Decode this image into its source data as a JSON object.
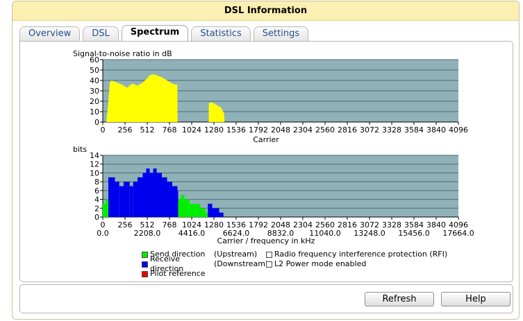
{
  "window": {
    "title": "DSL Information"
  },
  "tabs": [
    {
      "label": "Overview",
      "active": false
    },
    {
      "label": "DSL",
      "active": false
    },
    {
      "label": "Spectrum",
      "active": true
    },
    {
      "label": "Statistics",
      "active": false
    },
    {
      "label": "Settings",
      "active": false
    }
  ],
  "colors": {
    "plot_background": "#8fb1b7",
    "snr_fill": "#ffff00",
    "send_direction": "#00ee00",
    "receive_direction": "#0000ee",
    "pilot": "#ee0000"
  },
  "legend": {
    "send": "Send direction",
    "send_dir": "(Upstream)",
    "receive": "Receive direction",
    "receive_dir": "(Downstream)",
    "pilot": "Pilot reference",
    "rfi": "Radio frequency interference protection (RFI)",
    "l2": "L2 Power mode enabled"
  },
  "buttons": {
    "refresh": "Refresh",
    "help": "Help"
  },
  "chart_data": [
    {
      "type": "area",
      "ylabel": "Signal-to-noise ratio in dB",
      "xlabel": "Carrier",
      "xlim": [
        0,
        4096
      ],
      "ylim": [
        0,
        60
      ],
      "xticks": [
        0,
        256,
        512,
        768,
        1024,
        1280,
        1536,
        1792,
        2048,
        2304,
        2560,
        2816,
        3072,
        3328,
        3584,
        3840,
        4096
      ],
      "yticks": [
        0,
        10,
        20,
        30,
        40,
        50,
        60
      ],
      "grid": true,
      "series": [
        {
          "x": [
            0,
            40,
            60,
            80,
            100,
            160,
            220,
            280,
            340,
            400,
            460,
            500,
            540,
            580,
            620,
            680,
            740,
            800,
            840,
            860,
            861,
            1220,
            1221,
            1240,
            1280,
            1320,
            1360,
            1400,
            1401
          ],
          "y": [
            0,
            0,
            16,
            38,
            40,
            38,
            36,
            33,
            37,
            35,
            38,
            41,
            45,
            46,
            45,
            43,
            40,
            37,
            36,
            36,
            0,
            0,
            18,
            19,
            18,
            16,
            14,
            8,
            0
          ]
        }
      ]
    },
    {
      "type": "bar",
      "ylabel": "bits",
      "xlabel": "Carrier / frequency in kHz",
      "xlim": [
        0,
        4096
      ],
      "ylim": [
        0,
        14
      ],
      "xticks": [
        0,
        256,
        512,
        768,
        1024,
        1280,
        1536,
        1792,
        2048,
        2304,
        2560,
        2816,
        3072,
        3328,
        3584,
        3840,
        4096
      ],
      "xticks_khz": [
        "0.0",
        "2208.0",
        "4416.0",
        "6624.0",
        "8832.0",
        "11040.0",
        "13248.0",
        "15456.0",
        "17664.0"
      ],
      "yticks": [
        0,
        2,
        4,
        6,
        8,
        10,
        12,
        14
      ],
      "grid": true,
      "series": [
        {
          "name": "Send direction",
          "segments": [
            {
              "from": 0,
              "to": 32,
              "value": 3
            },
            {
              "from": 32,
              "to": 64,
              "value": 4
            },
            {
              "from": 868,
              "to": 900,
              "value": 4
            },
            {
              "from": 900,
              "to": 940,
              "value": 5
            },
            {
              "from": 940,
              "to": 1000,
              "value": 4
            },
            {
              "from": 1000,
              "to": 1060,
              "value": 3
            },
            {
              "from": 1060,
              "to": 1120,
              "value": 3
            },
            {
              "from": 1120,
              "to": 1180,
              "value": 2
            },
            {
              "from": 1180,
              "to": 1210,
              "value": 1
            }
          ]
        },
        {
          "name": "Receive direction",
          "segments": [
            {
              "from": 64,
              "to": 140,
              "value": 9
            },
            {
              "from": 140,
              "to": 190,
              "value": 8
            },
            {
              "from": 190,
              "to": 240,
              "value": 7
            },
            {
              "from": 240,
              "to": 310,
              "value": 8
            },
            {
              "from": 310,
              "to": 350,
              "value": 7
            },
            {
              "from": 350,
              "to": 400,
              "value": 8
            },
            {
              "from": 400,
              "to": 460,
              "value": 9
            },
            {
              "from": 460,
              "to": 500,
              "value": 10
            },
            {
              "from": 500,
              "to": 540,
              "value": 11
            },
            {
              "from": 540,
              "to": 580,
              "value": 10
            },
            {
              "from": 580,
              "to": 620,
              "value": 11
            },
            {
              "from": 620,
              "to": 680,
              "value": 10
            },
            {
              "from": 680,
              "to": 740,
              "value": 9
            },
            {
              "from": 740,
              "to": 800,
              "value": 8
            },
            {
              "from": 800,
              "to": 860,
              "value": 7
            },
            {
              "from": 860,
              "to": 868,
              "value": 6
            },
            {
              "from": 1210,
              "to": 1260,
              "value": 3
            },
            {
              "from": 1260,
              "to": 1340,
              "value": 2
            },
            {
              "from": 1340,
              "to": 1390,
              "value": 1
            }
          ]
        }
      ]
    }
  ]
}
